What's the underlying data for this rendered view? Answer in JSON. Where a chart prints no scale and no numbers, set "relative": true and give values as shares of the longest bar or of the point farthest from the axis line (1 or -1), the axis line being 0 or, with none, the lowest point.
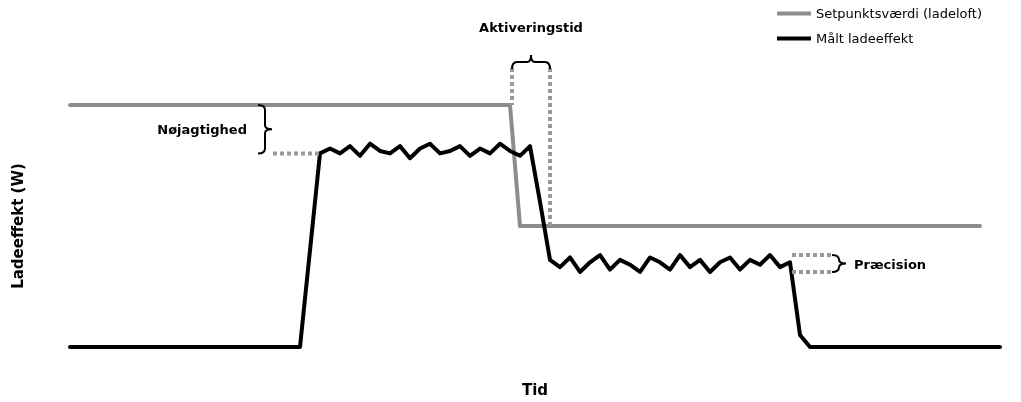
{
  "chart_data": {
    "type": "line",
    "relative": true,
    "xlabel": "Tid",
    "ylabel": "Ladeeffekt (W)",
    "legend": "top right",
    "marker": "none",
    "line_style": "solid",
    "grid": false,
    "annotations": [
      "Aktiveringstid",
      "Nøjagtighed",
      "Præcision"
    ],
    "categories": [
      null,
      null,
      null,
      null,
      null,
      null,
      null,
      null,
      null,
      null,
      null,
      null,
      null,
      null,
      null,
      null,
      null,
      null,
      null,
      null,
      null,
      null,
      null,
      null,
      null,
      null,
      null,
      null,
      null,
      null,
      null,
      null,
      null,
      null,
      null,
      null,
      null,
      null,
      null,
      null,
      null,
      null,
      null,
      null,
      null,
      null,
      null,
      null,
      null,
      null,
      null,
      null,
      null,
      null,
      null,
      null,
      null,
      null,
      null,
      null,
      null,
      null,
      null,
      null,
      null,
      null,
      null,
      null,
      null,
      null,
      null,
      null,
      null,
      null,
      null,
      null,
      null,
      null,
      null,
      null,
      null,
      null,
      null,
      null,
      null,
      null,
      null,
      null,
      null,
      null,
      null,
      null,
      null,
      null
    ],
    "series": [
      {
        "name": "Setpunktsværdi (ladeloft)",
        "color": "#8c8c8c",
        "values": [
          1,
          1,
          1,
          1,
          1,
          1,
          1,
          1,
          1,
          1,
          1,
          1,
          1,
          1,
          1,
          1,
          1,
          1,
          1,
          1,
          1,
          1,
          1,
          1,
          1,
          1,
          1,
          1,
          1,
          1,
          1,
          1,
          1,
          1,
          1,
          1,
          1,
          1,
          1,
          1,
          1,
          1,
          1,
          1,
          1,
          0.5,
          0.5,
          0.5,
          0.5,
          0.5,
          0.5,
          0.5,
          0.5,
          0.5,
          0.5,
          0.5,
          0.5,
          0.5,
          0.5,
          0.5,
          0.5,
          0.5,
          0.5,
          0.5,
          0.5,
          0.5,
          0.5,
          0.5,
          0.5,
          0.5,
          0.5,
          0.5,
          0.5,
          0.5,
          0.5,
          0.5,
          0.5,
          0.5,
          0.5,
          0.5,
          0.5,
          0.5,
          0.5,
          0.5,
          0.5,
          0.5,
          0.5,
          0.5,
          0.5,
          0.5,
          0.5,
          0.5,
          null,
          null
        ]
      },
      {
        "name": "Målt ladeeffekt",
        "color": "#000000",
        "values": [
          0,
          0,
          0,
          0,
          0,
          0,
          0,
          0,
          0,
          0,
          0,
          0,
          0,
          0,
          0,
          0,
          0,
          0,
          0,
          0,
          0,
          0,
          0,
          0,
          0.4,
          0.8,
          0.82,
          0.8,
          0.83,
          0.79,
          0.84,
          0.81,
          0.8,
          0.83,
          0.78,
          0.82,
          0.84,
          0.8,
          0.81,
          0.83,
          0.79,
          0.82,
          0.8,
          0.84,
          0.81,
          0.79,
          0.83,
          0.6,
          0.36,
          0.33,
          0.37,
          0.31,
          0.35,
          0.38,
          0.32,
          0.36,
          0.34,
          0.31,
          0.37,
          0.35,
          0.32,
          0.38,
          0.33,
          0.36,
          0.31,
          0.35,
          0.37,
          0.32,
          0.36,
          0.34,
          0.38,
          0.33,
          0.35,
          0.05,
          0,
          0,
          0,
          0,
          0,
          0,
          0,
          0,
          0,
          0,
          0,
          0,
          0,
          0,
          0,
          0,
          0,
          0,
          0,
          0
        ]
      }
    ]
  }
}
